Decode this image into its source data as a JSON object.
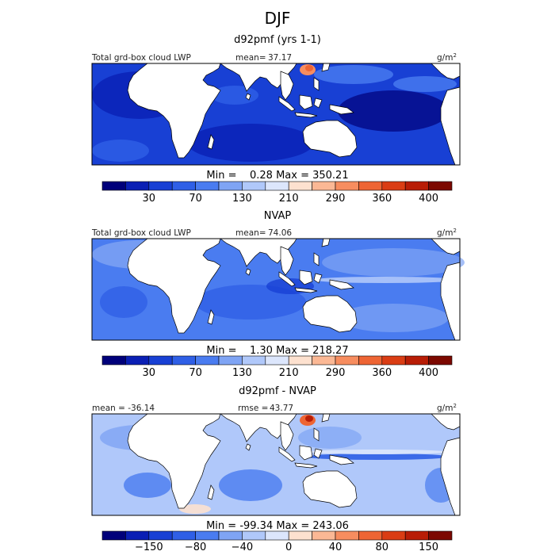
{
  "figure_title": "DJF",
  "units": "g/m",
  "units_exp": "2",
  "chart_data": [
    {
      "type": "heatmap",
      "title": "d92pmf (yrs 1-1)",
      "field_label": "Total grd-box cloud LWP",
      "mean_label": "mean=",
      "mean_value": "37.17",
      "stats_text": "Min =    0.28 Max = 350.21",
      "min": 0.28,
      "max": 350.21,
      "colorbar_ticks": [
        "30",
        "70",
        "130",
        "210",
        "290",
        "360",
        "400"
      ],
      "colorbar_colors": [
        "#00007a",
        "#0a1fb4",
        "#1840d4",
        "#2f5fe6",
        "#4a7cf0",
        "#7fa4f4",
        "#b0c8fa",
        "#dce6fc",
        "#fde1cf",
        "#fbb895",
        "#f78d5f",
        "#ee6534",
        "#da3d14",
        "#b81d06",
        "#7c0800"
      ],
      "dominant_color": "#1840d4"
    },
    {
      "type": "heatmap",
      "title": "NVAP",
      "field_label": "Total grd-box cloud LWP",
      "mean_label": "mean=",
      "mean_value": "74.06",
      "stats_text": "Min =    1.30 Max = 218.27",
      "min": 1.3,
      "max": 218.27,
      "colorbar_ticks": [
        "30",
        "70",
        "130",
        "210",
        "290",
        "360",
        "400"
      ],
      "colorbar_colors": [
        "#00007a",
        "#0a1fb4",
        "#1840d4",
        "#2f5fe6",
        "#4a7cf0",
        "#7fa4f4",
        "#b0c8fa",
        "#dce6fc",
        "#fde1cf",
        "#fbb895",
        "#f78d5f",
        "#ee6534",
        "#da3d14",
        "#b81d06",
        "#7c0800"
      ],
      "dominant_color": "#4a7cf0"
    },
    {
      "type": "heatmap",
      "title": "d92pmf - NVAP",
      "field_label": "mean = -36.14",
      "mean_label": "rmse =",
      "mean_value": "43.77",
      "stats_text": "Min = -99.34 Max = 243.06",
      "min": -99.34,
      "max": 243.06,
      "colorbar_ticks": [
        "−150",
        "−80",
        "−40",
        "0",
        "40",
        "80",
        "150"
      ],
      "colorbar_colors": [
        "#00007a",
        "#0a1fb4",
        "#1840d4",
        "#2f5fe6",
        "#4a7cf0",
        "#7fa4f4",
        "#b0c8fa",
        "#dce6fc",
        "#fde1cf",
        "#fbb895",
        "#f78d5f",
        "#ee6534",
        "#da3d14",
        "#b81d06",
        "#7c0800"
      ],
      "dominant_color": "#b0c8fa"
    }
  ]
}
